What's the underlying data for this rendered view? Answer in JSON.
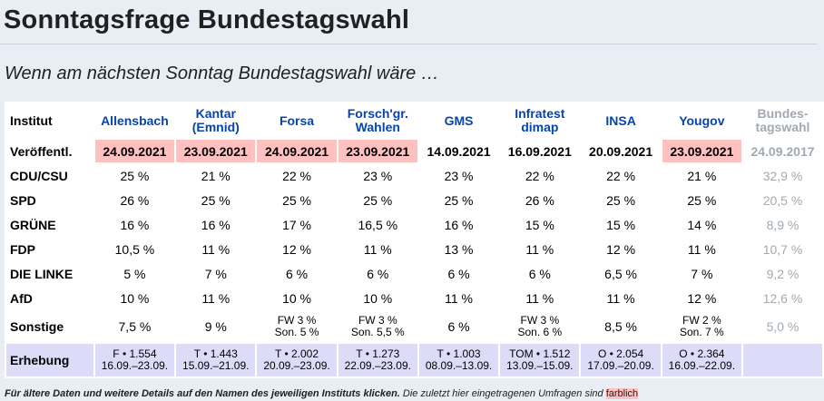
{
  "page": {
    "title": "Sonntagsfrage Bundestagswahl",
    "subtitle": "Wenn am nächsten Sonntag Bundestagswahl wäre …"
  },
  "table": {
    "row_labels": {
      "institut": "Institut",
      "veroeffentl": "Veröffentl.",
      "erhebung": "Erhebung"
    },
    "institutes": [
      {
        "name_l1": "Allensbach",
        "name_l2": ""
      },
      {
        "name_l1": "Kantar",
        "name_l2": "(Emnid)"
      },
      {
        "name_l1": "Forsa",
        "name_l2": ""
      },
      {
        "name_l1": "Forsch'gr.",
        "name_l2": "Wahlen"
      },
      {
        "name_l1": "GMS",
        "name_l2": ""
      },
      {
        "name_l1": "Infratest",
        "name_l2": "dimap"
      },
      {
        "name_l1": "INSA",
        "name_l2": ""
      },
      {
        "name_l1": "Yougov",
        "name_l2": ""
      },
      {
        "name_l1": "Bundes-",
        "name_l2": "tagswahl"
      }
    ],
    "dates": [
      "24.09.2021",
      "23.09.2021",
      "24.09.2021",
      "23.09.2021",
      "14.09.2021",
      "16.09.2021",
      "20.09.2021",
      "23.09.2021",
      "24.09.2017"
    ],
    "date_highlight": [
      true,
      true,
      true,
      true,
      false,
      false,
      false,
      true,
      false
    ],
    "parties": [
      {
        "name": "CDU/CSU",
        "values": [
          "25 %",
          "21 %",
          "22 %",
          "23 %",
          "23 %",
          "22 %",
          "22 %",
          "21 %",
          "32,9 %"
        ]
      },
      {
        "name": "SPD",
        "values": [
          "26 %",
          "25 %",
          "25 %",
          "25 %",
          "25 %",
          "26 %",
          "25 %",
          "25 %",
          "20,5 %"
        ]
      },
      {
        "name": "GRÜNE",
        "values": [
          "16 %",
          "16 %",
          "17 %",
          "16,5 %",
          "16 %",
          "15 %",
          "15 %",
          "14 %",
          "8,9 %"
        ]
      },
      {
        "name": "FDP",
        "values": [
          "10,5 %",
          "11 %",
          "12 %",
          "11 %",
          "13 %",
          "11 %",
          "12 %",
          "11 %",
          "10,7 %"
        ]
      },
      {
        "name": "DIE LINKE",
        "values": [
          "5 %",
          "7 %",
          "6 %",
          "6 %",
          "6 %",
          "6 %",
          "6,5 %",
          "7 %",
          "9,2 %"
        ]
      },
      {
        "name": "AfD",
        "values": [
          "10 %",
          "11 %",
          "10 %",
          "10 %",
          "11 %",
          "11 %",
          "11 %",
          "12 %",
          "12,6 %"
        ]
      }
    ],
    "sonstige": {
      "name": "Sonstige",
      "cells": [
        {
          "l1": "7,5 %",
          "l2": ""
        },
        {
          "l1": "9 %",
          "l2": ""
        },
        {
          "l1": "FW 3 %",
          "l2": "Son. 5 %"
        },
        {
          "l1": "FW 3 %",
          "l2": "Son. 5,5 %"
        },
        {
          "l1": "6 %",
          "l2": ""
        },
        {
          "l1": "FW 3 %",
          "l2": "Son. 6 %"
        },
        {
          "l1": "8,5 %",
          "l2": ""
        },
        {
          "l1": "FW 2 %",
          "l2": "Son. 7 %"
        },
        {
          "l1": "5,0 %",
          "l2": ""
        }
      ]
    },
    "erhebung": [
      {
        "l1": "F • 1.554",
        "l2": "16.09.–23.09."
      },
      {
        "l1": "T • 1.443",
        "l2": "15.09.–21.09."
      },
      {
        "l1": "T • 2.002",
        "l2": "20.09.–23.09."
      },
      {
        "l1": "T • 1.273",
        "l2": "22.09.–23.09."
      },
      {
        "l1": "T • 1.003",
        "l2": "08.09.–13.09."
      },
      {
        "l1": "TOM • 1.512",
        "l2": "13.09.–15.09."
      },
      {
        "l1": "O • 2.054",
        "l2": "17.09.–20.09."
      },
      {
        "l1": "O • 2.364",
        "l2": "16.09.–22.09."
      },
      {
        "l1": "",
        "l2": ""
      }
    ]
  },
  "footer": {
    "bold_text": "Für ältere Daten und weitere Details auf den Namen des jeweiligen Instituts klicken.",
    "normal_text": " Die zuletzt hier eingetragenen Umfragen sind ",
    "mark_text": "farblich"
  },
  "colors": {
    "highlight": "#ffc0c0",
    "link": "#0645ad",
    "muted": "#a2a9b1",
    "erhebung_bg": "#dcdcf8"
  }
}
